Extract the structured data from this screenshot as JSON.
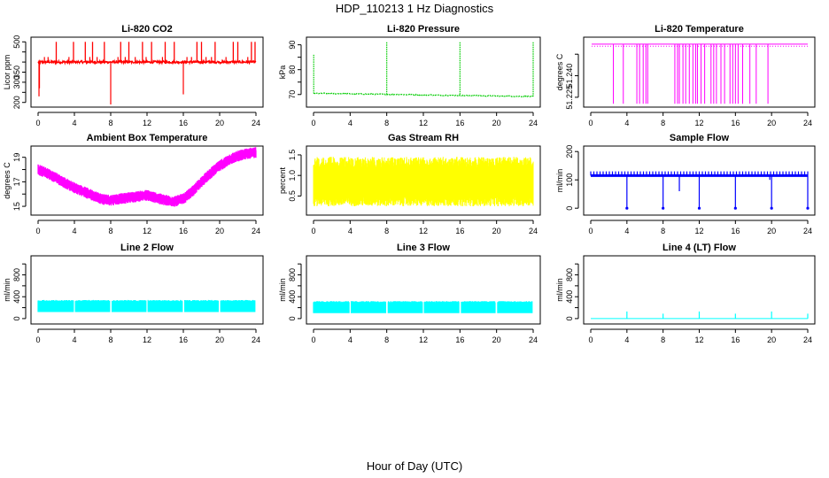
{
  "title": "HDP_110213  1 Hz Diagnostics",
  "xlabel": "Hour of Day (UTC)",
  "colors": {
    "red": "#ff0000",
    "green": "#00cc00",
    "magenta": "#ff00ff",
    "yellow": "#ffff00",
    "blue": "#0000ff",
    "cyan": "#00ffff",
    "black": "#000000"
  },
  "chart_data": [
    {
      "type": "line",
      "title": "Li-820 CO2",
      "ylabel": "Licor ppm",
      "color": "#ff0000",
      "xlim": [
        0,
        24
      ],
      "ylim": [
        190,
        510
      ],
      "xticks": [
        0,
        4,
        8,
        12,
        16,
        20,
        24
      ],
      "yticks": [
        200,
        250,
        300,
        350,
        400,
        450,
        500
      ],
      "ytick_labels": [
        "200",
        "",
        "300",
        "350",
        "",
        "",
        "500"
      ],
      "baseline": 400,
      "noise": 6,
      "spikes_up": [
        2.0,
        3.9,
        5.2,
        6.0,
        7.3,
        9.1,
        10.0,
        11.5,
        12.5,
        14.0,
        15.0,
        17.5,
        18.0,
        19.5,
        21.5,
        22.0,
        23.5,
        23.9
      ],
      "spike_top": 500,
      "dips": [
        [
          0.1,
          230
        ],
        [
          0.15,
          270
        ],
        [
          8.0,
          190
        ],
        [
          16.0,
          240
        ]
      ],
      "short_bumps": [
        0.7,
        1.1,
        3.4,
        5.7,
        6.5,
        8.8,
        9.6,
        10.7,
        11.9,
        13.7,
        16.4,
        16.9,
        18.5,
        19.1,
        20.7,
        23.1
      ]
    },
    {
      "type": "line",
      "title": "Li-820 Pressure",
      "ylabel": "kPa",
      "color": "#00cc00",
      "xlim": [
        0,
        24
      ],
      "ylim": [
        66,
        92
      ],
      "xticks": [
        0,
        4,
        8,
        12,
        16,
        20,
        24
      ],
      "yticks": [
        70,
        75,
        80,
        85,
        90
      ],
      "ytick_labels": [
        "70",
        "",
        "80",
        "",
        "90"
      ],
      "segments": [
        [
          0.02,
          86,
          70.5,
          4
        ],
        [
          8.0,
          91,
          69.5,
          4
        ],
        [
          16.0,
          91,
          69.5,
          4
        ],
        [
          24.0,
          91,
          69.2,
          0.1
        ]
      ],
      "baseline_start": 70.5,
      "baseline_end": 69.2
    },
    {
      "type": "line",
      "title": "Li-820 Temperature",
      "ylabel": "degrees C",
      "color": "#ff00ff",
      "xlim": [
        0,
        24
      ],
      "ylim": [
        51.22,
        51.265
      ],
      "xticks": [
        0,
        4,
        8,
        12,
        16,
        20,
        24
      ],
      "yticks": [
        51.225,
        51.24,
        51.255
      ],
      "ytick_labels": [
        "51.225",
        "51.240",
        ""
      ],
      "top_value": 51.262,
      "bottom_value": 51.2205,
      "drops": [
        2.5,
        3.6,
        5.1,
        5.4,
        5.8,
        6.1,
        6.3,
        9.3,
        9.6,
        9.8,
        10.2,
        10.5,
        10.9,
        11.3,
        11.6,
        11.8,
        12.2,
        12.6,
        13.3,
        13.6,
        13.9,
        14.4,
        14.8,
        15.4,
        15.7,
        16.0,
        16.3,
        16.8,
        17.6,
        18.3,
        19.6
      ],
      "dotted_level": 51.2605
    },
    {
      "type": "line",
      "title": "Ambient Box Temperature",
      "ylabel": "degrees C",
      "color": "#ff00ff",
      "xlim": [
        0,
        24
      ],
      "ylim": [
        14.5,
        19.7
      ],
      "xticks": [
        0,
        4,
        8,
        12,
        16,
        20,
        24
      ],
      "yticks": [
        15,
        16,
        17,
        18,
        19
      ],
      "ytick_labels": [
        "15",
        "",
        "17",
        "",
        "19"
      ],
      "x": [
        0,
        1,
        2,
        3,
        4,
        5,
        6,
        7,
        8,
        9,
        10,
        11,
        12,
        13,
        14,
        15,
        16,
        17,
        18,
        19,
        20,
        21,
        22,
        23,
        24
      ],
      "y": [
        18.0,
        17.7,
        17.3,
        16.9,
        16.5,
        16.2,
        15.9,
        15.6,
        15.5,
        15.6,
        15.7,
        15.8,
        15.9,
        15.7,
        15.5,
        15.4,
        15.6,
        16.2,
        17.0,
        17.7,
        18.3,
        18.8,
        19.1,
        19.3,
        19.4
      ],
      "band": 0.45
    },
    {
      "type": "line",
      "title": "Gas Stream RH",
      "ylabel": "percent",
      "color": "#ffff00",
      "xlim": [
        0,
        24
      ],
      "ylim": [
        0.1,
        1.65
      ],
      "xticks": [
        0,
        4,
        8,
        12,
        16,
        20,
        24
      ],
      "yticks": [
        0.5,
        1.0,
        1.5
      ],
      "ytick_labels": [
        "0.5",
        "1.0",
        "1.5"
      ],
      "low": 0.25,
      "high": 1.45,
      "center": 0.85
    },
    {
      "type": "line",
      "title": "Sample Flow",
      "ylabel": "ml/min",
      "color": "#0000ff",
      "xlim": [
        0,
        24
      ],
      "ylim": [
        -15,
        210
      ],
      "xticks": [
        0,
        4,
        8,
        12,
        16,
        20,
        24
      ],
      "yticks": [
        0,
        100,
        200
      ],
      "ytick_labels": [
        "0",
        "100",
        "200"
      ],
      "baseline": 115,
      "upper_dots": 130,
      "drops_to_zero": [
        4.0,
        8.0,
        12.0,
        16.0,
        20.0,
        24.0
      ],
      "partial_drops": [
        [
          9.8,
          60
        ],
        [
          19.8,
          100
        ]
      ]
    },
    {
      "type": "area",
      "title": "Line 2 Flow",
      "ylabel": "ml/min",
      "color": "#00ffff",
      "xlim": [
        0,
        24
      ],
      "ylim": [
        -50,
        1100
      ],
      "xticks": [
        0,
        4,
        8,
        12,
        16,
        20,
        24
      ],
      "yticks": [
        0,
        200,
        400,
        600,
        800,
        1000
      ],
      "ytick_labels": [
        "0",
        "",
        "400",
        "",
        "800",
        ""
      ],
      "low": 120,
      "high": 340,
      "gaps": [
        4.0,
        8.0,
        12.0,
        16.0,
        20.0,
        24.0
      ]
    },
    {
      "type": "area",
      "title": "Line 3 Flow",
      "ylabel": "ml/min",
      "color": "#00ffff",
      "xlim": [
        0,
        24
      ],
      "ylim": [
        -50,
        1100
      ],
      "xticks": [
        0,
        4,
        8,
        12,
        16,
        20,
        24
      ],
      "yticks": [
        0,
        200,
        400,
        600,
        800,
        1000
      ],
      "ytick_labels": [
        "0",
        "",
        "400",
        "",
        "800",
        ""
      ],
      "low": 100,
      "high": 320,
      "gaps": [
        4.0,
        8.0,
        12.0,
        16.0,
        20.0,
        24.0
      ]
    },
    {
      "type": "line",
      "title": "Line 4 (LT) Flow",
      "ylabel": "ml/min",
      "color": "#00ffff",
      "xlim": [
        0,
        24
      ],
      "ylim": [
        -50,
        1100
      ],
      "xticks": [
        0,
        4,
        8,
        12,
        16,
        20,
        24
      ],
      "yticks": [
        0,
        200,
        400,
        600,
        800,
        1000
      ],
      "ytick_labels": [
        "0",
        "",
        "400",
        "",
        "800",
        ""
      ],
      "baseline": 0,
      "spikes": [
        [
          4.0,
          130
        ],
        [
          8.0,
          90
        ],
        [
          12.0,
          130
        ],
        [
          16.0,
          90
        ],
        [
          20.0,
          130
        ],
        [
          24.0,
          90
        ]
      ]
    }
  ]
}
